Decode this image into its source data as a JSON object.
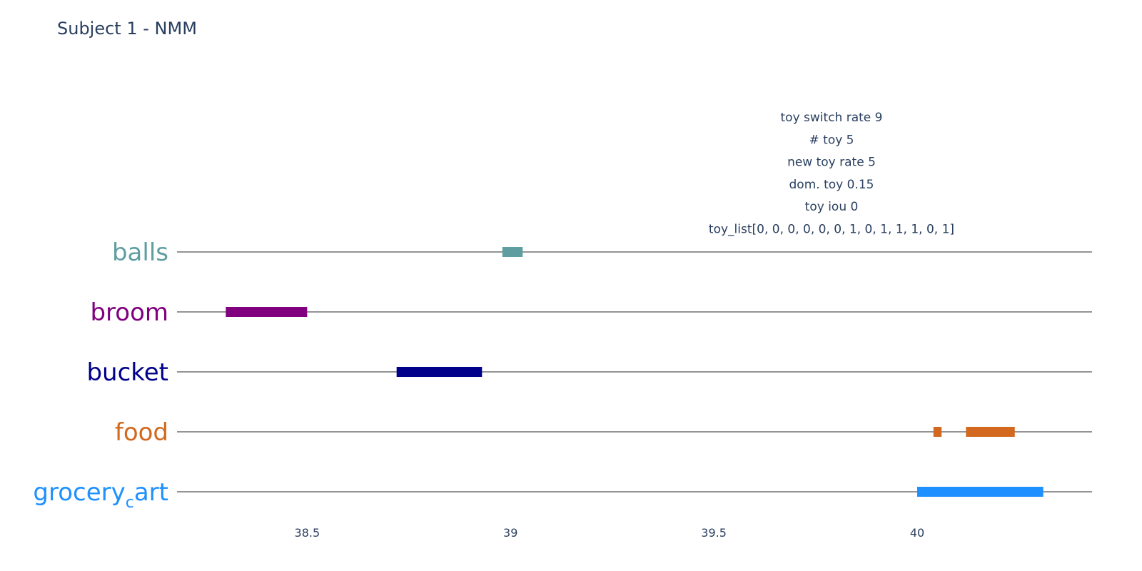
{
  "chart_data": {
    "type": "timeline",
    "title": "Subject 1 - NMM",
    "annotation": [
      "toy switch rate 9",
      "# toy 5",
      "new toy rate 5",
      "dom. toy 0.15",
      "toy iou 0",
      "toy_list[0, 0, 0, 0, 0, 0, 1, 0, 1, 1, 1, 0, 1]"
    ],
    "xlim": [
      38.18,
      40.43
    ],
    "xticks": [
      38.5,
      39,
      39.5,
      40
    ],
    "xtick_labels": [
      "38.5",
      "39",
      "39.5",
      "40"
    ],
    "grid": false,
    "categories": [
      {
        "name": "balls",
        "display": "balls",
        "color": "#5f9ea0",
        "segments": [
          [
            38.98,
            39.03
          ]
        ]
      },
      {
        "name": "broom",
        "display": "broom",
        "color": "#800080",
        "segments": [
          [
            38.3,
            38.5
          ]
        ]
      },
      {
        "name": "bucket",
        "display": "bucket",
        "color": "#00008b",
        "segments": [
          [
            38.72,
            38.93
          ]
        ]
      },
      {
        "name": "food",
        "display": "food",
        "color": "#d2691e",
        "segments": [
          [
            40.04,
            40.06
          ],
          [
            40.12,
            40.24
          ]
        ]
      },
      {
        "name": "grocery_cart",
        "display_main": "grocery",
        "display_sub": "c",
        "display_tail": "art",
        "color": "#1e90ff",
        "segments": [
          [
            40.0,
            40.31
          ]
        ]
      }
    ]
  }
}
